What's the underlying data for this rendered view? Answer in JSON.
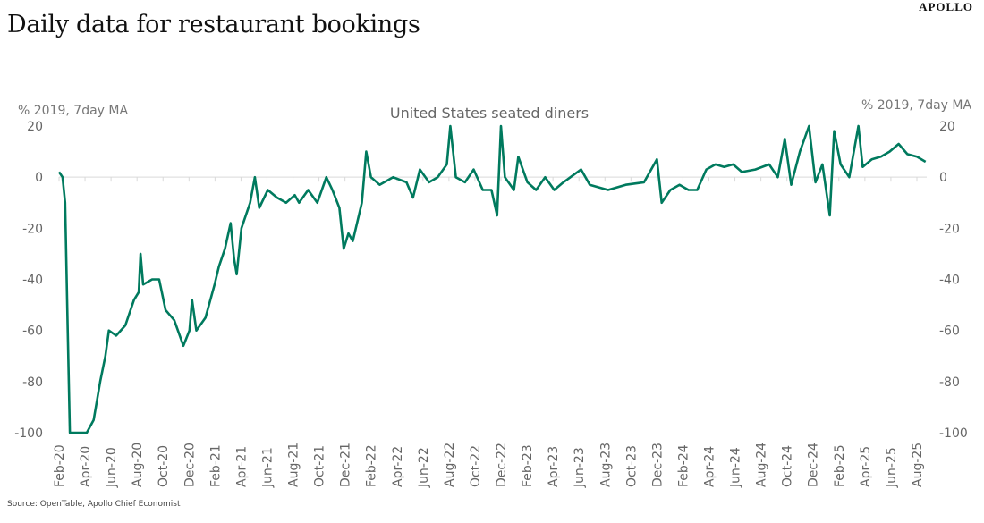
{
  "header": {
    "title": "Daily data for restaurant bookings",
    "logo": "APOLLO"
  },
  "footer": {
    "source": "Source: OpenTable, Apollo Chief Economist"
  },
  "chart_data": {
    "type": "line",
    "title": "United States seated diners",
    "ylabel_left": "% 2019, 7day MA",
    "ylabel_right": "% 2019, 7day MA",
    "ylim": [
      -100,
      20
    ],
    "yticks": [
      20,
      0,
      -20,
      -40,
      -60,
      -80,
      -100
    ],
    "xlim": [
      "2020-02-01",
      "2025-08-31"
    ],
    "xtick_labels": [
      "Feb-20",
      "Apr-20",
      "Jun-20",
      "Aug-20",
      "Oct-20",
      "Dec-20",
      "Feb-21",
      "Apr-21",
      "Jun-21",
      "Aug-21",
      "Oct-21",
      "Dec-21",
      "Feb-22",
      "Apr-22",
      "Jun-22",
      "Aug-22",
      "Oct-22",
      "Dec-22",
      "Feb-23",
      "Apr-23",
      "Jun-23",
      "Aug-23",
      "Oct-23",
      "Dec-23",
      "Feb-24",
      "Apr-24",
      "Jun-24",
      "Aug-24",
      "Oct-24",
      "Dec-24",
      "Feb-25",
      "Apr-25",
      "Jun-25",
      "Aug-25"
    ],
    "grid": false,
    "color": "#007a5e",
    "series": [
      {
        "points": [
          [
            "2020-02-01",
            2
          ],
          [
            "2020-02-09",
            0
          ],
          [
            "2020-02-15",
            -10
          ],
          [
            "2020-02-21",
            -60
          ],
          [
            "2020-02-26",
            -100
          ],
          [
            "2020-04-05",
            -100
          ],
          [
            "2020-04-21",
            -95
          ],
          [
            "2020-05-06",
            -80
          ],
          [
            "2020-05-18",
            -70
          ],
          [
            "2020-05-26",
            -60
          ],
          [
            "2020-06-13",
            -62
          ],
          [
            "2020-07-04",
            -58
          ],
          [
            "2020-07-24",
            -48
          ],
          [
            "2020-08-05",
            -45
          ],
          [
            "2020-08-09",
            -30
          ],
          [
            "2020-08-15",
            -42
          ],
          [
            "2020-09-06",
            -40
          ],
          [
            "2020-09-22",
            -40
          ],
          [
            "2020-10-07",
            -52
          ],
          [
            "2020-10-27",
            -56
          ],
          [
            "2020-11-18",
            -66
          ],
          [
            "2020-12-02",
            -60
          ],
          [
            "2020-12-08",
            -48
          ],
          [
            "2020-12-18",
            -60
          ],
          [
            "2021-01-09",
            -55
          ],
          [
            "2021-01-30",
            -42
          ],
          [
            "2021-02-10",
            -35
          ],
          [
            "2021-02-24",
            -28
          ],
          [
            "2021-03-07",
            -18
          ],
          [
            "2021-03-15",
            -32
          ],
          [
            "2021-03-21",
            -38
          ],
          [
            "2021-04-02",
            -20
          ],
          [
            "2021-04-22",
            -10
          ],
          [
            "2021-05-03",
            0
          ],
          [
            "2021-05-13",
            -12
          ],
          [
            "2021-06-03",
            -5
          ],
          [
            "2021-06-24",
            -8
          ],
          [
            "2021-07-15",
            -10
          ],
          [
            "2021-08-05",
            -7
          ],
          [
            "2021-08-15",
            -10
          ],
          [
            "2021-09-06",
            -5
          ],
          [
            "2021-09-27",
            -10
          ],
          [
            "2021-10-18",
            0
          ],
          [
            "2021-11-02",
            -5
          ],
          [
            "2021-11-18",
            -12
          ],
          [
            "2021-11-28",
            -28
          ],
          [
            "2021-12-09",
            -22
          ],
          [
            "2021-12-19",
            -25
          ],
          [
            "2022-01-10",
            -10
          ],
          [
            "2022-01-20",
            10
          ],
          [
            "2022-02-01",
            0
          ],
          [
            "2022-02-21",
            -3
          ],
          [
            "2022-03-22",
            0
          ],
          [
            "2022-04-23",
            -2
          ],
          [
            "2022-05-08",
            -8
          ],
          [
            "2022-05-24",
            3
          ],
          [
            "2022-06-15",
            -2
          ],
          [
            "2022-07-05",
            0
          ],
          [
            "2022-07-26",
            5
          ],
          [
            "2022-08-04",
            20
          ],
          [
            "2022-08-17",
            0
          ],
          [
            "2022-09-08",
            -2
          ],
          [
            "2022-09-28",
            3
          ],
          [
            "2022-10-19",
            -5
          ],
          [
            "2022-11-09",
            -5
          ],
          [
            "2022-11-22",
            -15
          ],
          [
            "2022-12-01",
            20
          ],
          [
            "2022-12-10",
            0
          ],
          [
            "2023-01-01",
            -5
          ],
          [
            "2023-01-11",
            8
          ],
          [
            "2023-02-02",
            -2
          ],
          [
            "2023-02-22",
            -5
          ],
          [
            "2023-03-13",
            0
          ],
          [
            "2023-04-04",
            -5
          ],
          [
            "2023-04-25",
            -2
          ],
          [
            "2023-06-06",
            3
          ],
          [
            "2023-06-26",
            -3
          ],
          [
            "2023-08-08",
            -5
          ],
          [
            "2023-09-19",
            -3
          ],
          [
            "2023-11-01",
            -2
          ],
          [
            "2023-12-01",
            7
          ],
          [
            "2023-12-12",
            -10
          ],
          [
            "2024-01-02",
            -5
          ],
          [
            "2024-01-23",
            -3
          ],
          [
            "2024-02-14",
            -5
          ],
          [
            "2024-03-04",
            -5
          ],
          [
            "2024-03-25",
            3
          ],
          [
            "2024-04-16",
            5
          ],
          [
            "2024-05-06",
            4
          ],
          [
            "2024-05-27",
            5
          ],
          [
            "2024-06-17",
            2
          ],
          [
            "2024-07-18",
            3
          ],
          [
            "2024-08-20",
            5
          ],
          [
            "2024-09-10",
            0
          ],
          [
            "2024-09-26",
            15
          ],
          [
            "2024-10-11",
            -3
          ],
          [
            "2024-11-01",
            10
          ],
          [
            "2024-11-22",
            20
          ],
          [
            "2024-12-07",
            -2
          ],
          [
            "2024-12-23",
            5
          ],
          [
            "2025-01-10",
            -15
          ],
          [
            "2025-01-20",
            18
          ],
          [
            "2025-02-05",
            5
          ],
          [
            "2025-02-25",
            0
          ],
          [
            "2025-03-16",
            20
          ],
          [
            "2025-03-26",
            4
          ],
          [
            "2025-04-17",
            7
          ],
          [
            "2025-05-08",
            8
          ],
          [
            "2025-05-28",
            10
          ],
          [
            "2025-06-19",
            13
          ],
          [
            "2025-07-09",
            9
          ],
          [
            "2025-08-01",
            8
          ],
          [
            "2025-08-21",
            6
          ]
        ]
      }
    ]
  }
}
